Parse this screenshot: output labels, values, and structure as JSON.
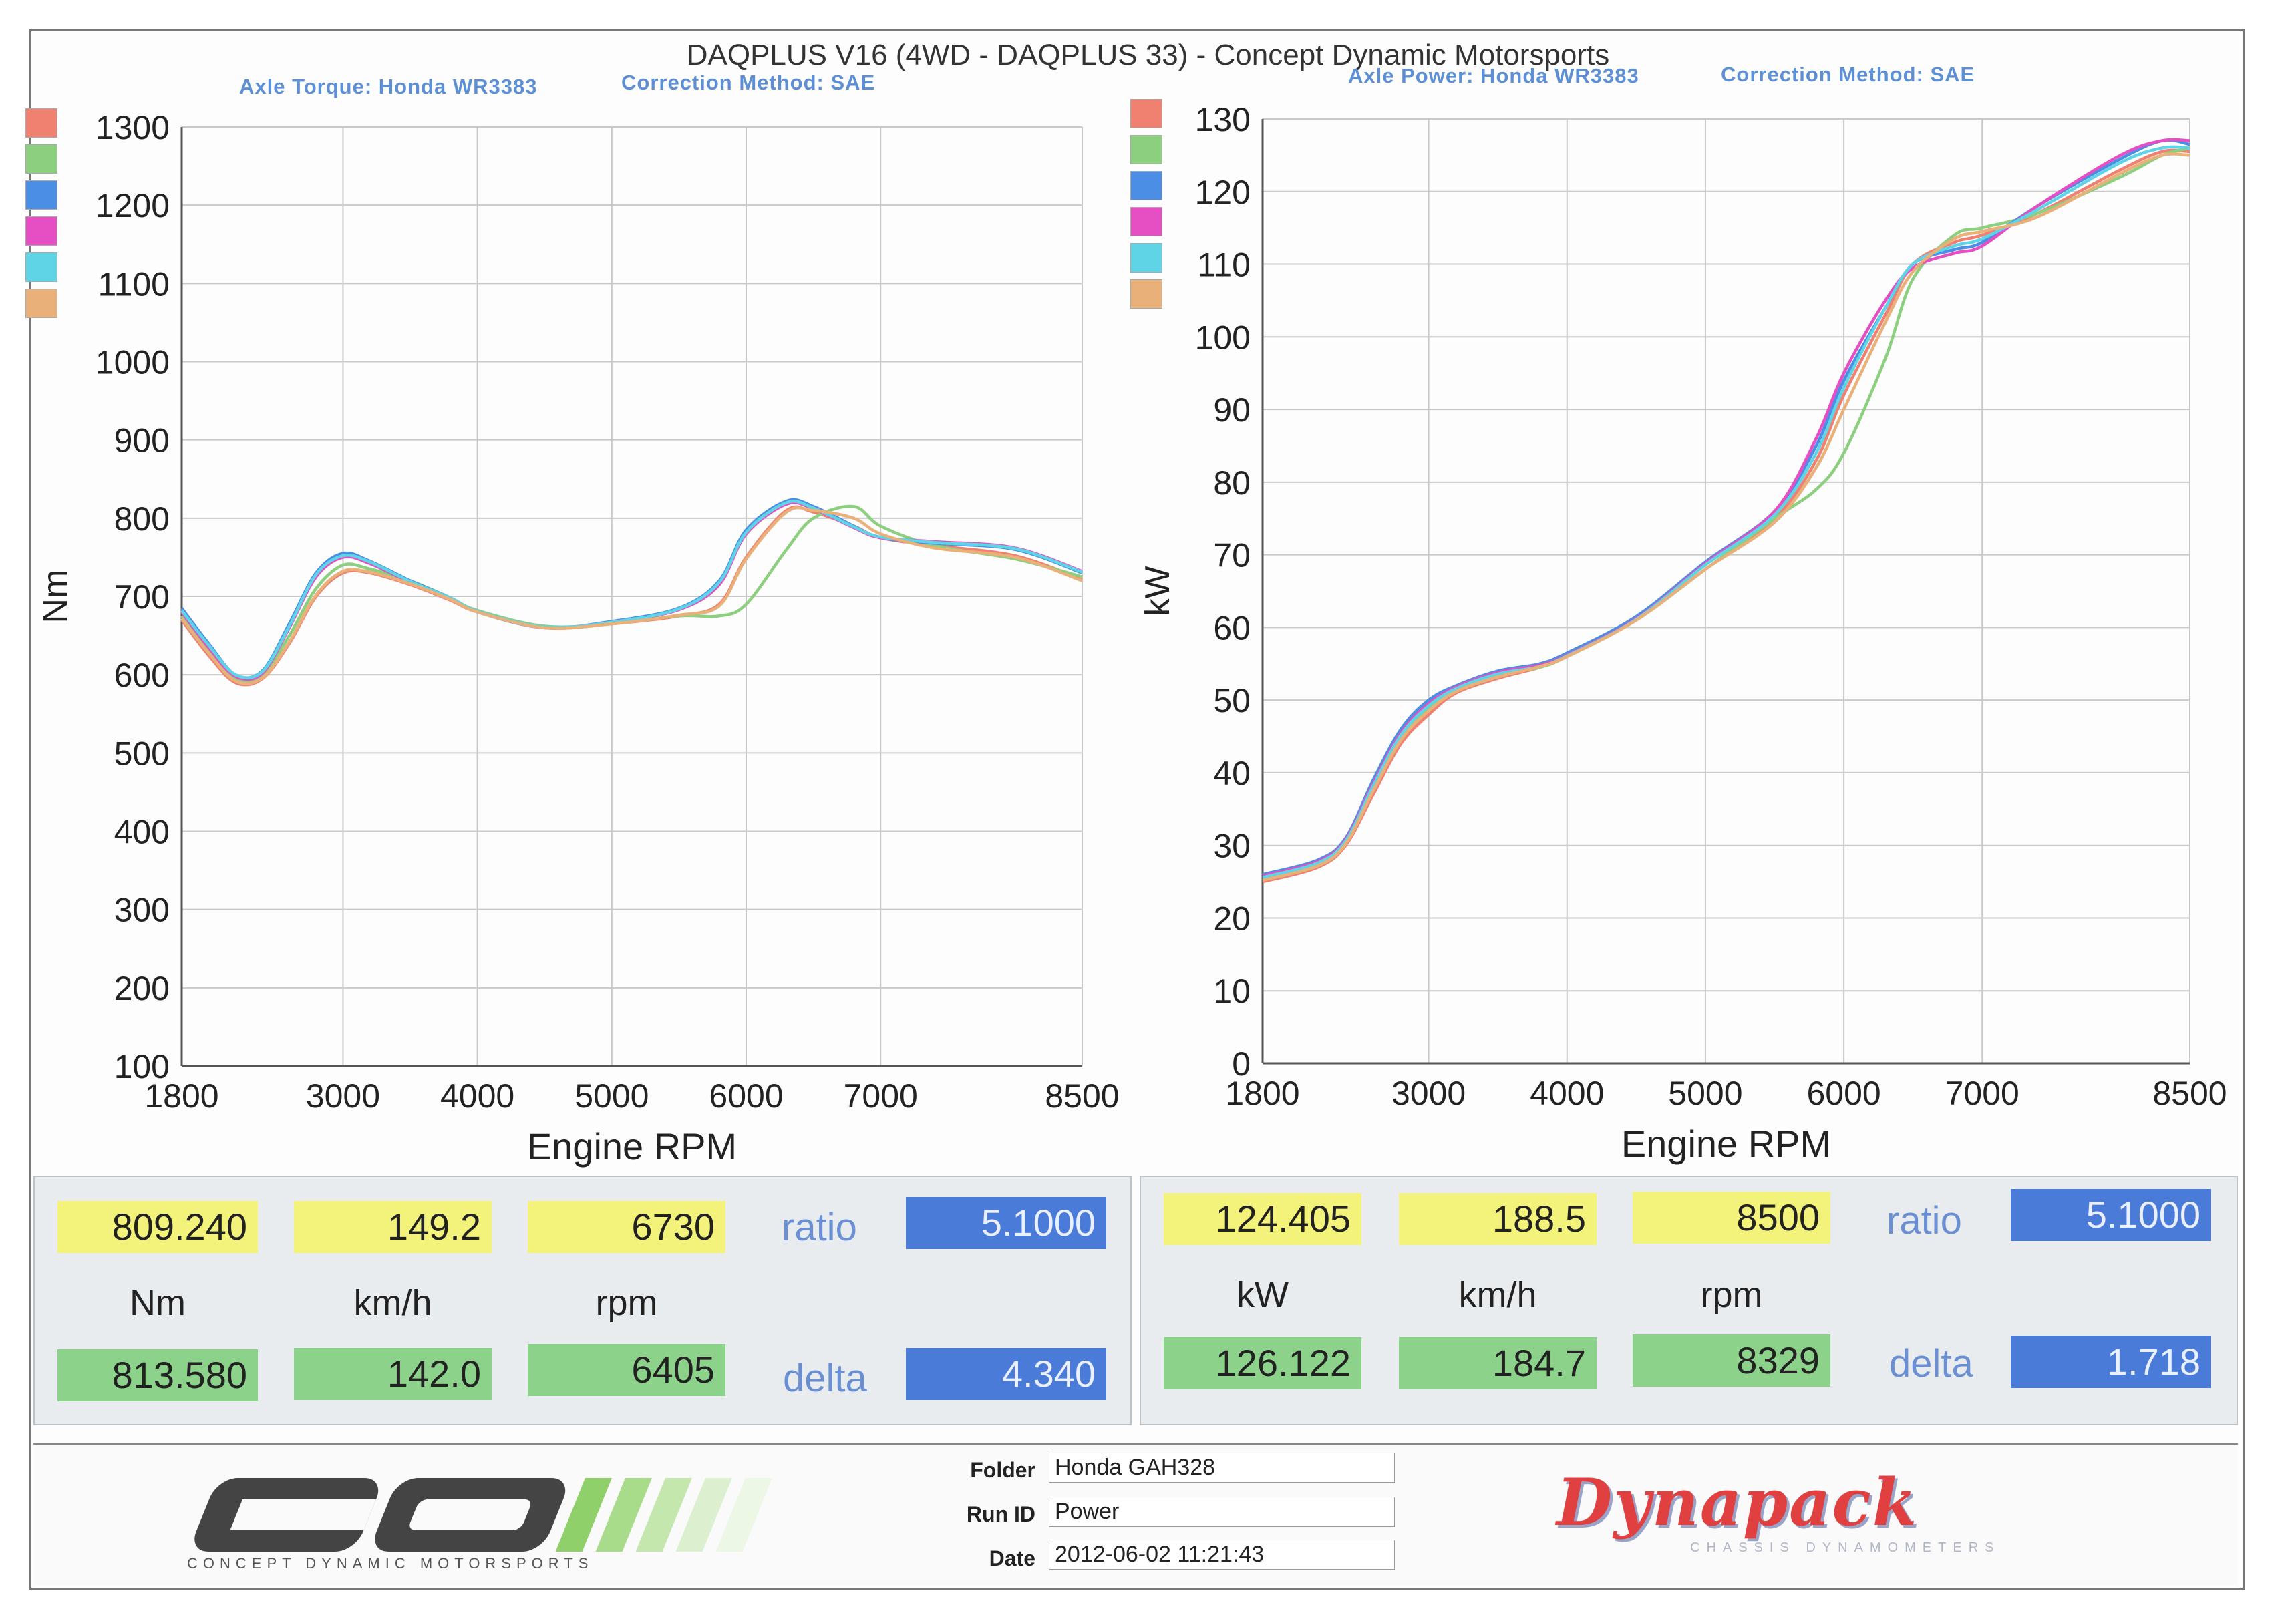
{
  "title": "DAQPLUS V16 (4WD - DAQPLUS 33) - Concept Dynamic Motorsports",
  "left_panel": {
    "subtitle_1": "Axle Torque: Honda WR3383",
    "subtitle_2": "Correction Method: SAE",
    "readout": {
      "top_values": [
        "809.240",
        "149.2",
        "6730"
      ],
      "units": [
        "Nm",
        "km/h",
        "rpm"
      ],
      "bottom_values": [
        "813.580",
        "142.0",
        "6405"
      ],
      "ratio_label": "ratio",
      "ratio_value": "5.1000",
      "delta_label": "delta",
      "delta_value": "4.340"
    }
  },
  "right_panel": {
    "subtitle_1": "Axle Power: Honda WR3383",
    "subtitle_2": "Correction Method: SAE",
    "readout": {
      "top_values": [
        "124.405",
        "188.5",
        "8500"
      ],
      "units": [
        "kW",
        "km/h",
        "rpm"
      ],
      "bottom_values": [
        "126.122",
        "184.7",
        "8329"
      ],
      "ratio_label": "ratio",
      "ratio_value": "5.1000",
      "delta_label": "delta",
      "delta_value": "1.718"
    }
  },
  "series_colors": [
    "#f08070",
    "#8ccf7e",
    "#4a8ee6",
    "#e64fc3",
    "#5fd4e6",
    "#eab07a"
  ],
  "chart_data": [
    {
      "type": "line",
      "xlabel": "Engine RPM",
      "ylabel": "Nm",
      "xlim": [
        1800,
        8500
      ],
      "ylim": [
        100,
        1300
      ],
      "x_ticks": [
        1800,
        3000,
        4000,
        5000,
        6000,
        7000,
        8500
      ],
      "y_ticks": [
        100,
        200,
        300,
        400,
        500,
        600,
        700,
        800,
        900,
        1000,
        1100,
        1200,
        1300
      ],
      "grid": true,
      "series": [
        {
          "x": [
            1800,
            2000,
            2200,
            2400,
            2600,
            2800,
            3000,
            3200,
            3500,
            3800,
            4000,
            4500,
            5000,
            5500,
            5800,
            6000,
            6300,
            6500,
            6800,
            7000,
            7400,
            8000,
            8500
          ],
          "y": [
            670,
            625,
            590,
            595,
            640,
            700,
            730,
            730,
            715,
            695,
            680,
            660,
            665,
            675,
            690,
            750,
            810,
            808,
            790,
            775,
            765,
            752,
            722
          ]
        },
        {
          "x": [
            1800,
            2000,
            2200,
            2400,
            2600,
            2800,
            3000,
            3200,
            3500,
            3800,
            4000,
            4500,
            5000,
            5500,
            5800,
            6000,
            6300,
            6500,
            6800,
            7000,
            7400,
            8000,
            8500
          ],
          "y": [
            675,
            630,
            595,
            600,
            650,
            710,
            740,
            735,
            720,
            698,
            682,
            662,
            665,
            675,
            675,
            690,
            760,
            800,
            815,
            790,
            765,
            748,
            725
          ]
        },
        {
          "x": [
            1800,
            2000,
            2200,
            2400,
            2600,
            2800,
            3000,
            3200,
            3500,
            3800,
            4000,
            4500,
            5000,
            5500,
            5800,
            6000,
            6300,
            6500,
            6800,
            7000,
            7400,
            8000,
            8500
          ],
          "y": [
            685,
            640,
            600,
            605,
            665,
            730,
            755,
            745,
            720,
            698,
            680,
            660,
            668,
            685,
            720,
            785,
            822,
            815,
            790,
            775,
            768,
            760,
            730
          ]
        },
        {
          "x": [
            1800,
            2000,
            2200,
            2400,
            2600,
            2800,
            3000,
            3200,
            3500,
            3800,
            4000,
            4500,
            5000,
            5500,
            5800,
            6000,
            6300,
            6500,
            6800,
            7000,
            7400,
            8000,
            8500
          ],
          "y": [
            680,
            635,
            598,
            602,
            660,
            725,
            750,
            742,
            718,
            697,
            681,
            660,
            667,
            683,
            715,
            780,
            818,
            812,
            788,
            775,
            770,
            762,
            732
          ]
        },
        {
          "x": [
            1800,
            2000,
            2200,
            2400,
            2600,
            2800,
            3000,
            3200,
            3500,
            3800,
            4000,
            4500,
            5000,
            5500,
            5800,
            6000,
            6300,
            6500,
            6800,
            7000,
            7400,
            8000,
            8500
          ],
          "y": [
            682,
            638,
            600,
            604,
            662,
            728,
            752,
            744,
            719,
            698,
            681,
            661,
            667,
            684,
            718,
            782,
            820,
            813,
            789,
            776,
            769,
            761,
            731
          ]
        },
        {
          "x": [
            1800,
            2000,
            2200,
            2400,
            2600,
            2800,
            3000,
            3200,
            3500,
            3800,
            4000,
            4500,
            5000,
            5500,
            5800,
            6000,
            6300,
            6500,
            6800,
            7000,
            7400,
            8000,
            8500
          ],
          "y": [
            672,
            628,
            592,
            596,
            642,
            702,
            732,
            731,
            716,
            696,
            680,
            660,
            665,
            676,
            688,
            748,
            808,
            810,
            800,
            780,
            762,
            750,
            720
          ]
        }
      ]
    },
    {
      "type": "line",
      "xlabel": "Engine RPM",
      "ylabel": "kW",
      "xlim": [
        1800,
        8500
      ],
      "ylim": [
        0,
        130
      ],
      "x_ticks": [
        1800,
        3000,
        4000,
        5000,
        6000,
        7000,
        8500
      ],
      "y_ticks": [
        0,
        10,
        20,
        30,
        40,
        50,
        60,
        70,
        80,
        90,
        100,
        110,
        120,
        130
      ],
      "grid": true,
      "series": [
        {
          "x": [
            1800,
            2200,
            2400,
            2600,
            2800,
            3000,
            3200,
            3500,
            3800,
            4000,
            4500,
            5000,
            5500,
            5800,
            6000,
            6300,
            6500,
            6800,
            7000,
            7400,
            8000,
            8300,
            8500
          ],
          "y": [
            25,
            27,
            30,
            37,
            44,
            48,
            51,
            53,
            54.5,
            56,
            61,
            68,
            75,
            83,
            92,
            103,
            110,
            113,
            114,
            117,
            123,
            125.5,
            125.5
          ]
        },
        {
          "x": [
            1800,
            2200,
            2400,
            2600,
            2800,
            3000,
            3200,
            3500,
            3800,
            4000,
            4500,
            5000,
            5500,
            5800,
            6000,
            6300,
            6500,
            6800,
            7000,
            7400,
            8000,
            8300,
            8500
          ],
          "y": [
            25.5,
            27.5,
            30.5,
            38,
            45,
            49,
            51.5,
            53.5,
            54.5,
            56,
            61,
            68,
            75,
            79,
            84,
            97,
            108,
            114,
            115,
            117,
            122,
            125,
            126
          ]
        },
        {
          "x": [
            1800,
            2200,
            2400,
            2600,
            2800,
            3000,
            3200,
            3500,
            3800,
            4000,
            4500,
            5000,
            5500,
            5800,
            6000,
            6300,
            6500,
            6800,
            7000,
            7400,
            8000,
            8300,
            8500
          ],
          "y": [
            26,
            28,
            31,
            39,
            46,
            50,
            52,
            54,
            55,
            56.5,
            61.5,
            69,
            76,
            85,
            94,
            104,
            110,
            112,
            113,
            118,
            124.5,
            127,
            126.5
          ]
        },
        {
          "x": [
            1800,
            2200,
            2400,
            2600,
            2800,
            3000,
            3200,
            3500,
            3800,
            4000,
            4500,
            5000,
            5500,
            5800,
            6000,
            6300,
            6500,
            6800,
            7000,
            7400,
            8000,
            8300,
            8500
          ],
          "y": [
            25.8,
            27.8,
            30.8,
            38.5,
            45.5,
            49.5,
            51.8,
            53.8,
            54.8,
            56.2,
            61.2,
            68.8,
            76,
            86,
            95,
            105,
            109.5,
            111.5,
            112.5,
            118,
            125,
            127,
            127
          ]
        },
        {
          "x": [
            1800,
            2200,
            2400,
            2600,
            2800,
            3000,
            3200,
            3500,
            3800,
            4000,
            4500,
            5000,
            5500,
            5800,
            6000,
            6300,
            6500,
            6800,
            7000,
            7400,
            8000,
            8300,
            8500
          ],
          "y": [
            25.6,
            27.6,
            30.6,
            38.2,
            45.2,
            49.2,
            51.6,
            53.6,
            54.6,
            56.1,
            61.1,
            68.6,
            75.5,
            84,
            93,
            104,
            110,
            112.5,
            113.5,
            117.5,
            124,
            126,
            126
          ]
        },
        {
          "x": [
            1800,
            2200,
            2400,
            2600,
            2800,
            3000,
            3200,
            3500,
            3800,
            4000,
            4500,
            5000,
            5500,
            5800,
            6000,
            6300,
            6500,
            6800,
            7000,
            7400,
            8000,
            8300,
            8500
          ],
          "y": [
            25.2,
            27.2,
            30.2,
            37.5,
            44.5,
            48.5,
            51.2,
            53.2,
            54.6,
            56,
            61,
            68,
            74.5,
            82,
            90,
            102,
            109,
            113.5,
            114.5,
            116.5,
            122.5,
            125,
            125
          ]
        }
      ]
    }
  ],
  "footer": {
    "logo_text": "CD",
    "logo_subtext": "CONCEPT DYNAMIC MOTORSPORTS",
    "folder_label": "Folder",
    "folder_value": "Honda GAH328",
    "runid_label": "Run ID",
    "runid_value": "Power",
    "date_label": "Date",
    "date_value": "2012-06-02 11:21:43",
    "brand_text": "Dynapack",
    "brand_subtext": "CHASSIS DYNAMOMETERS"
  }
}
